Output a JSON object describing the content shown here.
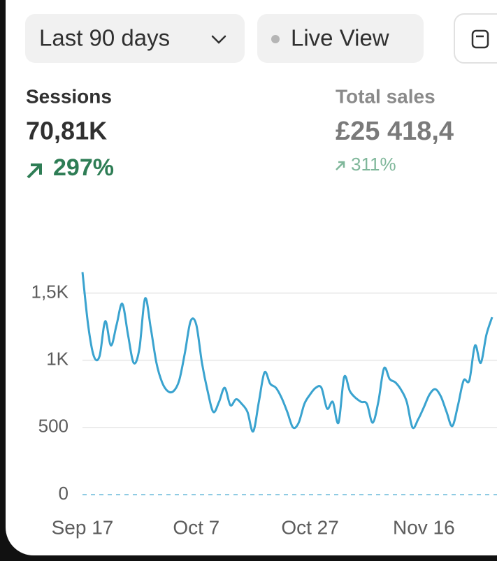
{
  "toolbar": {
    "date_range": "Last 90 days",
    "live_view": "Live View"
  },
  "metrics": [
    {
      "label": "Sessions",
      "value": "70,81K",
      "change": "297%"
    },
    {
      "label": "Total sales",
      "value": "£25 418,4",
      "change": "311%"
    }
  ],
  "chart_data": {
    "type": "line",
    "x": [
      "Sep 17",
      "Sep 18",
      "Sep 19",
      "Sep 20",
      "Sep 21",
      "Sep 22",
      "Sep 23",
      "Sep 24",
      "Sep 25",
      "Sep 26",
      "Sep 27",
      "Sep 28",
      "Sep 29",
      "Sep 30",
      "Oct 1",
      "Oct 2",
      "Oct 3",
      "Oct 4",
      "Oct 5",
      "Oct 6",
      "Oct 7",
      "Oct 8",
      "Oct 9",
      "Oct 10",
      "Oct 11",
      "Oct 12",
      "Oct 13",
      "Oct 14",
      "Oct 15",
      "Oct 16",
      "Oct 17",
      "Oct 18",
      "Oct 19",
      "Oct 20",
      "Oct 21",
      "Oct 22",
      "Oct 23",
      "Oct 24",
      "Oct 25",
      "Oct 26",
      "Oct 27",
      "Oct 28",
      "Oct 29",
      "Oct 30",
      "Oct 31",
      "Nov 1",
      "Nov 2",
      "Nov 3",
      "Nov 4",
      "Nov 5",
      "Nov 6",
      "Nov 7",
      "Nov 8",
      "Nov 9",
      "Nov 10",
      "Nov 11",
      "Nov 12",
      "Nov 13",
      "Nov 14",
      "Nov 15",
      "Nov 16",
      "Nov 17",
      "Nov 18",
      "Nov 19",
      "Nov 20",
      "Nov 21",
      "Nov 22",
      "Nov 23",
      "Nov 24",
      "Nov 25",
      "Nov 26",
      "Nov 27",
      "Nov 28"
    ],
    "series": [
      {
        "color": "#3aa3cf",
        "values": [
          1656,
          1260,
          1030,
          1030,
          1290,
          1110,
          1265,
          1420,
          1190,
          980,
          1085,
          1460,
          1240,
          980,
          835,
          770,
          770,
          850,
          1055,
          1290,
          1265,
          980,
          770,
          615,
          690,
          795,
          665,
          710,
          675,
          615,
          470,
          690,
          910,
          825,
          795,
          720,
          615,
          500,
          535,
          675,
          745,
          795,
          795,
          640,
          690,
          535,
          875,
          770,
          720,
          690,
          675,
          535,
          690,
          940,
          860,
          835,
          780,
          690,
          500,
          560,
          650,
          745,
          785,
          730,
          615,
          510,
          665,
          850,
          850,
          1110,
          980,
          1190,
          1320
        ]
      }
    ],
    "ylim": [
      0,
      1700
    ],
    "yticks": [
      0,
      500,
      {
        "value": 1000,
        "label": "1K"
      },
      {
        "value": 1500,
        "label": "1,5K"
      }
    ],
    "xticks": [
      "Sep 17",
      "Oct 7",
      "Oct 27",
      "Nov 16"
    ],
    "grid": true
  }
}
